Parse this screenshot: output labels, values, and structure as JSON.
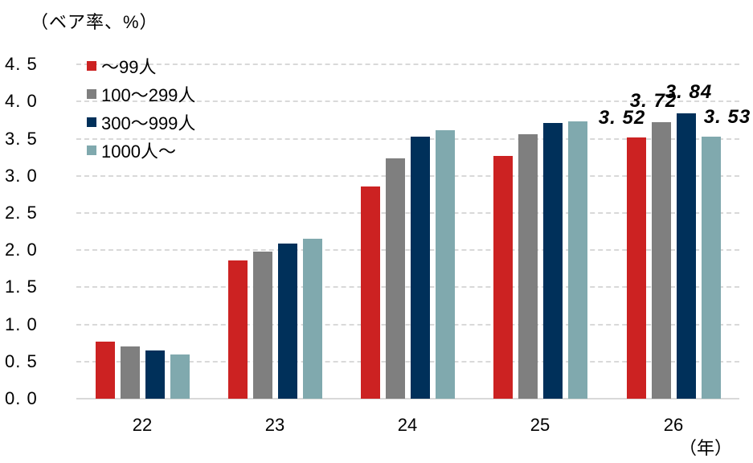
{
  "chart_data": {
    "type": "bar",
    "title": "",
    "ylabel": "（ベア率、%）",
    "xlabel": "（年）",
    "categories": [
      "22",
      "23",
      "24",
      "25",
      "26"
    ],
    "series": [
      {
        "name": "～99人",
        "color": "#cc2222",
        "values": [
          0.77,
          1.86,
          2.86,
          3.27,
          3.52
        ]
      },
      {
        "name": "100～299人",
        "color": "#7f7f7f",
        "values": [
          0.7,
          1.98,
          3.24,
          3.56,
          3.72
        ]
      },
      {
        "name": "300～999人",
        "color": "#00305a",
        "values": [
          0.65,
          2.09,
          3.53,
          3.71,
          3.84
        ]
      },
      {
        "name": "1000人～",
        "color": "#80a9ae",
        "values": [
          0.6,
          2.15,
          3.62,
          3.73,
          3.53
        ]
      }
    ],
    "data_labels": [
      {
        "category": "26",
        "series": "～99人",
        "text": "3. 52"
      },
      {
        "category": "26",
        "series": "100～299人",
        "text": "3. 72"
      },
      {
        "category": "26",
        "series": "300～999人",
        "text": "3. 84"
      },
      {
        "category": "26",
        "series": "1000人～",
        "text": "3. 53"
      }
    ],
    "yticks": [
      "0. 0",
      "0. 5",
      "1. 0",
      "1. 5",
      "2. 0",
      "2. 5",
      "3. 0",
      "3. 5",
      "4. 0",
      "4. 5"
    ],
    "ylim": [
      0,
      4.5
    ],
    "grid": true,
    "legend_position": "top-left"
  }
}
